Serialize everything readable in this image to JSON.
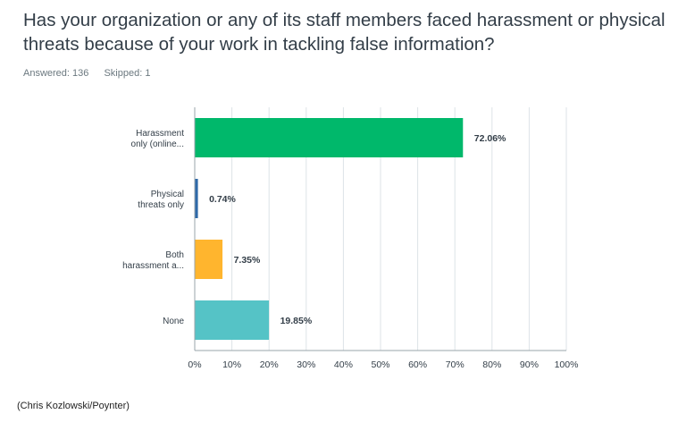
{
  "title": "Has your organization or any of its staff members faced harassment or physical threats because of your work in tackling false information?",
  "answered": "Answered: 136",
  "skipped": "Skipped: 1",
  "credit": "(Chris Kozlowski/Poynter)",
  "colors": {
    "grid": "#dde3e7",
    "axis": "#9aa5ab",
    "text": "#333e48",
    "value_text": "#333e48"
  },
  "chart_data": {
    "type": "bar",
    "orientation": "horizontal",
    "categories": [
      [
        "Harassment",
        "only (online..."
      ],
      [
        "Physical",
        "threats only"
      ],
      [
        "Both",
        "harassment a..."
      ],
      [
        "None"
      ]
    ],
    "values": [
      72.06,
      0.74,
      7.35,
      19.85
    ],
    "value_labels": [
      "72.06%",
      "0.74%",
      "7.35%",
      "19.85%"
    ],
    "bar_colors": [
      "#00b86b",
      "#2e69a8",
      "#ffb52e",
      "#55c3c6"
    ],
    "xlim": [
      0,
      100
    ],
    "ticks": [
      "0%",
      "10%",
      "20%",
      "30%",
      "40%",
      "50%",
      "60%",
      "70%",
      "80%",
      "90%",
      "100%"
    ],
    "tick_values": [
      0,
      10,
      20,
      30,
      40,
      50,
      60,
      70,
      80,
      90,
      100
    ],
    "grid": true
  }
}
